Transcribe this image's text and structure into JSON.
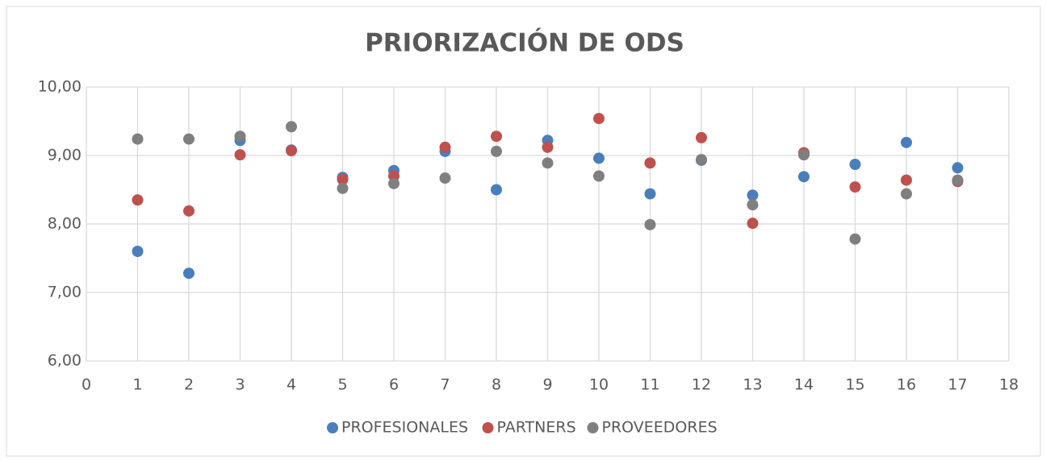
{
  "chart_data": {
    "type": "scatter",
    "title": "PRIORIZACIÓN DE ODS",
    "x": [
      1,
      2,
      3,
      4,
      5,
      6,
      7,
      8,
      9,
      10,
      11,
      12,
      13,
      14,
      15,
      16,
      17
    ],
    "series": [
      {
        "name": "PROFESIONALES",
        "color": "#4a7ebb",
        "values": [
          7.6,
          7.28,
          9.22,
          9.08,
          8.68,
          8.78,
          9.06,
          8.5,
          9.22,
          8.96,
          8.44,
          8.93,
          8.42,
          8.69,
          8.87,
          9.19,
          8.82
        ]
      },
      {
        "name": "PARTNERS",
        "color": "#c0504d",
        "values": [
          8.35,
          8.19,
          9.01,
          9.07,
          8.65,
          8.7,
          9.12,
          9.28,
          9.12,
          9.54,
          8.89,
          9.26,
          8.01,
          9.04,
          8.54,
          8.64,
          8.62
        ]
      },
      {
        "name": "PROVEEDORES",
        "color": "#7f7f7f",
        "values": [
          9.24,
          9.24,
          9.28,
          9.42,
          8.52,
          8.59,
          8.67,
          9.06,
          8.89,
          8.7,
          7.99,
          8.94,
          8.28,
          9.01,
          7.78,
          8.44,
          8.64
        ]
      }
    ],
    "xlim": [
      0,
      18
    ],
    "xticks": [
      0,
      1,
      2,
      3,
      4,
      5,
      6,
      7,
      8,
      9,
      10,
      11,
      12,
      13,
      14,
      15,
      16,
      17,
      18
    ],
    "ylim": [
      6,
      10
    ],
    "yticks": [
      {
        "value": 6,
        "label": "6,00"
      },
      {
        "value": 7,
        "label": "7,00"
      },
      {
        "value": 8,
        "label": "8,00"
      },
      {
        "value": 9,
        "label": "9,00"
      },
      {
        "value": 10,
        "label": "10,00"
      }
    ],
    "grid": true,
    "legend": "bottom"
  }
}
